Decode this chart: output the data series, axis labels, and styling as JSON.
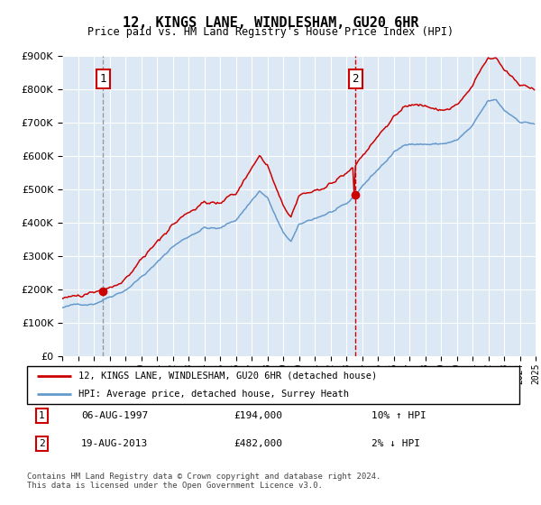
{
  "title": "12, KINGS LANE, WINDLESHAM, GU20 6HR",
  "subtitle": "Price paid vs. HM Land Registry's House Price Index (HPI)",
  "legend_line1": "12, KINGS LANE, WINDLESHAM, GU20 6HR (detached house)",
  "legend_line2": "HPI: Average price, detached house, Surrey Heath",
  "sale1_date": "06-AUG-1997",
  "sale1_price": 194000,
  "sale1_hpi_pct": "10% ↑ HPI",
  "sale2_date": "19-AUG-2013",
  "sale2_price": 482000,
  "sale2_hpi_pct": "2% ↓ HPI",
  "footer": "Contains HM Land Registry data © Crown copyright and database right 2024.\nThis data is licensed under the Open Government Licence v3.0.",
  "bg_color": "#dce9f5",
  "hpi_color": "#6699cc",
  "price_color": "#cc0000",
  "sale_dot_color": "#cc0000",
  "vline1_color": "#999999",
  "vline2_color": "#cc0000",
  "ylim_min": 0,
  "ylim_max": 900000,
  "hpi_anchors_x": [
    1995.0,
    1996.0,
    1997.0,
    1997.6,
    1998.0,
    1999.0,
    2000.0,
    2001.0,
    2002.0,
    2003.0,
    2004.0,
    2005.0,
    2006.0,
    2007.5,
    2008.0,
    2009.0,
    2009.5,
    2010.0,
    2011.0,
    2012.0,
    2013.0,
    2013.6,
    2014.0,
    2015.0,
    2016.0,
    2017.0,
    2018.0,
    2019.0,
    2020.0,
    2021.0,
    2022.0,
    2022.5,
    2023.0,
    2024.0,
    2024.9
  ],
  "hpi_anchors_y": [
    145000,
    152000,
    160000,
    175000,
    185000,
    210000,
    250000,
    290000,
    340000,
    370000,
    400000,
    395000,
    420000,
    510000,
    490000,
    380000,
    355000,
    400000,
    420000,
    440000,
    455000,
    480000,
    510000,
    560000,
    610000,
    640000,
    640000,
    640000,
    650000,
    690000,
    760000,
    760000,
    730000,
    700000,
    695000
  ]
}
